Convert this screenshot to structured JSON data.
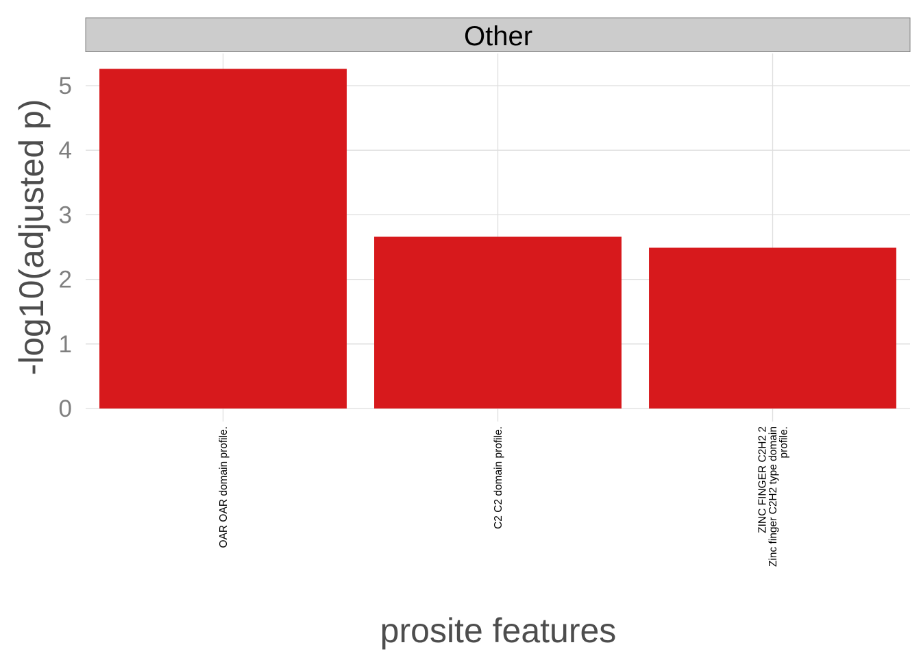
{
  "chart_data": {
    "type": "bar",
    "facet": "Other",
    "categories": [
      [
        "OAR OAR domain profile."
      ],
      [
        "C2 C2 domain profile."
      ],
      [
        "ZINC FINGER C2H2 2",
        "Zinc finger C2H2 type domain",
        "profile."
      ]
    ],
    "values": [
      5.26,
      2.66,
      2.49
    ],
    "xlabel": "prosite features",
    "ylabel": "-log10(adjusted p)",
    "ylim": [
      0,
      5.5
    ],
    "yticks": [
      0,
      1,
      2,
      3,
      4,
      5
    ],
    "grid": true,
    "bar_color": "#d7191c"
  }
}
